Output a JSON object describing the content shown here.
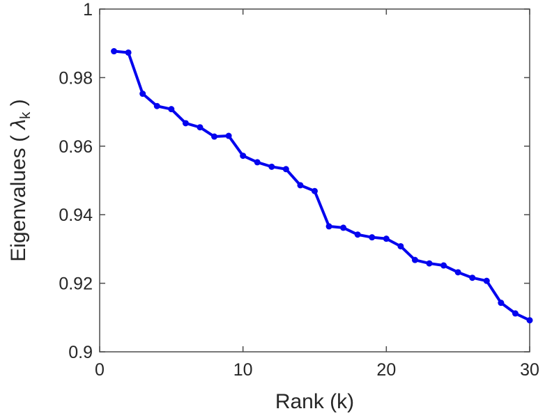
{
  "figure": {
    "background": "#ffffff",
    "axis_color": "#4a4a4a",
    "text_color": "#262626"
  },
  "chart_data": {
    "type": "line",
    "title": "",
    "xlabel": "Rank (k)",
    "ylabel": "Eigenvalues ( λk )",
    "ylabel_parts": {
      "prefix": "Eigenvalues ( ",
      "symbol": "λ",
      "subscript": "k",
      "suffix": " )"
    },
    "x": [
      1,
      2,
      3,
      4,
      5,
      6,
      7,
      8,
      9,
      10,
      11,
      12,
      13,
      14,
      15,
      16,
      17,
      18,
      19,
      20,
      21,
      22,
      23,
      24,
      25,
      26,
      27,
      28,
      29,
      30
    ],
    "series": [
      {
        "name": "eigenvalues",
        "color": "#0404ee",
        "marker": "circle",
        "values": [
          0.9877,
          0.9873,
          0.9753,
          0.9717,
          0.9708,
          0.9667,
          0.9655,
          0.9628,
          0.963,
          0.9572,
          0.9553,
          0.954,
          0.9533,
          0.9486,
          0.9469,
          0.9366,
          0.9362,
          0.9342,
          0.9334,
          0.933,
          0.9308,
          0.9268,
          0.9258,
          0.9252,
          0.9232,
          0.9216,
          0.9207,
          0.9143,
          0.9112,
          0.9092
        ]
      }
    ],
    "xlim": [
      0,
      30
    ],
    "ylim": [
      0.9,
      1.0
    ],
    "xticks": [
      0,
      10,
      20,
      30
    ],
    "xtick_labels": [
      "0",
      "10",
      "20",
      "30"
    ],
    "yticks": [
      1.0,
      0.98,
      0.96,
      0.94,
      0.92,
      0.9
    ],
    "ytick_labels": [
      "1",
      "0.98",
      "0.96",
      "0.94",
      "0.92",
      "0.9"
    ],
    "grid": false,
    "legend": "none",
    "box": true,
    "tick_direction": "in"
  }
}
